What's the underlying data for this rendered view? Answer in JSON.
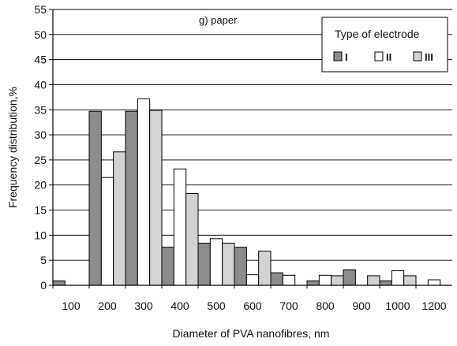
{
  "chart_data": {
    "type": "bar",
    "title": "",
    "annotation": "g) paper",
    "xlabel": "Diameter of PVA nanofibres, nm",
    "ylabel": "Frequency distribution,%",
    "x_tick_labels": [
      "100",
      "200",
      "300",
      "400",
      "500",
      "600",
      "700",
      "800",
      "900",
      "1000",
      "1200"
    ],
    "y_ticks": [
      0,
      5,
      10,
      15,
      20,
      25,
      30,
      35,
      40,
      45,
      50,
      55
    ],
    "ylim": [
      0,
      55
    ],
    "grid": true,
    "legend": {
      "title": "Type of electrode",
      "placement": "top-right"
    },
    "series": [
      {
        "name": "I",
        "color": "#8c8c8c",
        "values": [
          0.9,
          34.7,
          34.7,
          7.6,
          8.4,
          7.6,
          2.5,
          0.9,
          3.1,
          0.9,
          0
        ]
      },
      {
        "name": "II",
        "color": "#ffffff",
        "values": [
          0,
          21.5,
          37.2,
          23.2,
          9.3,
          2.1,
          2.0,
          2.0,
          0,
          2.9,
          1.1
        ]
      },
      {
        "name": "III",
        "color": "#d3d3d3",
        "values": [
          0,
          26.6,
          34.9,
          18.3,
          8.4,
          6.8,
          0,
          1.9,
          1.9,
          1.9,
          0
        ]
      }
    ]
  }
}
